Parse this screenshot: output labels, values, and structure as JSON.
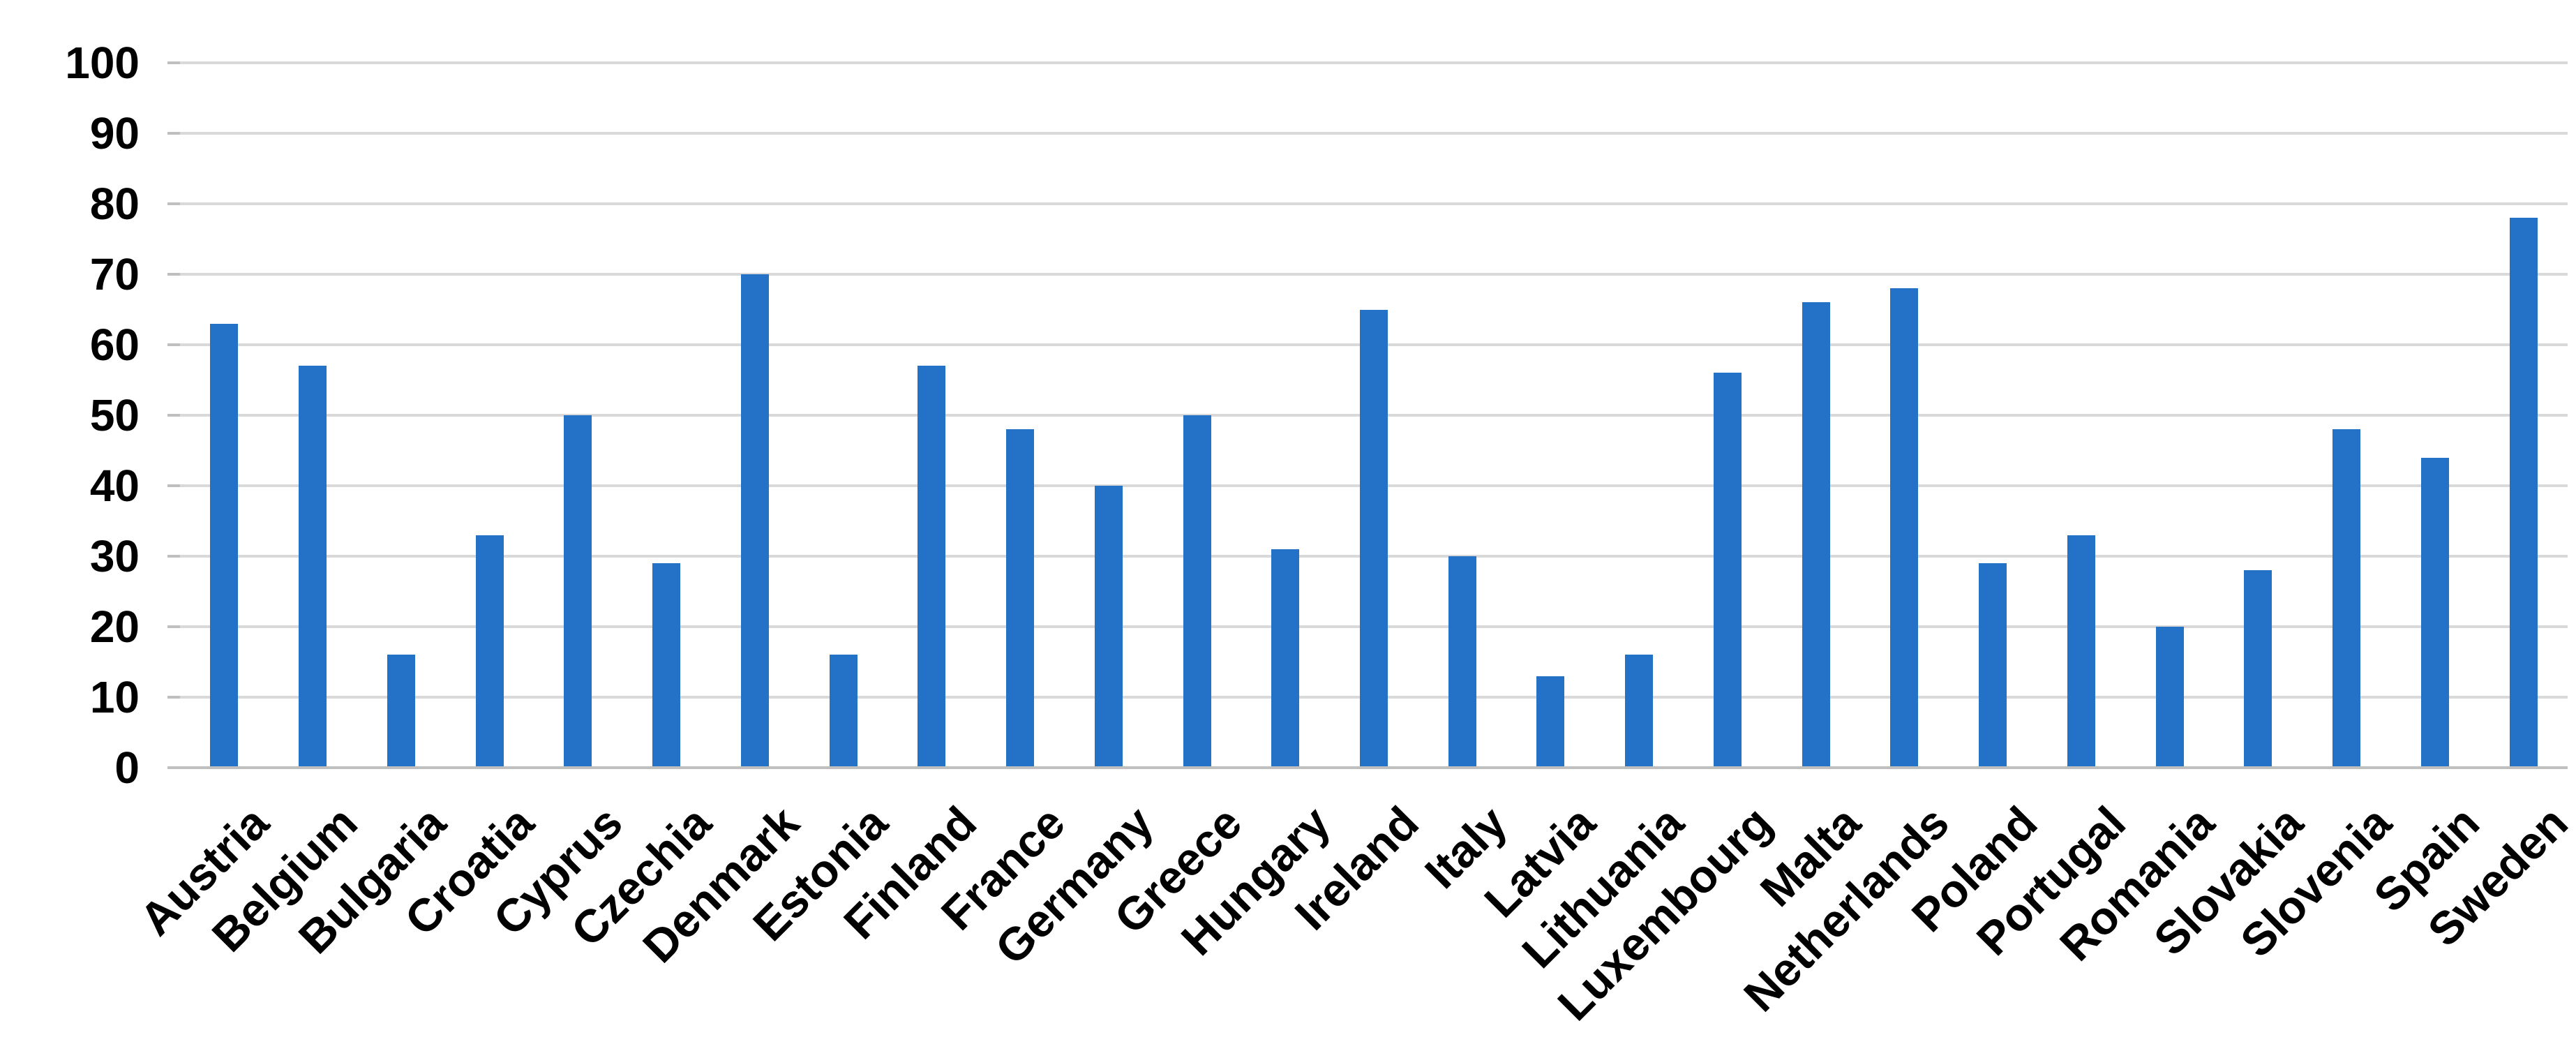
{
  "chart_data": {
    "type": "bar",
    "title": "",
    "xlabel": "",
    "ylabel": "",
    "categories": [
      "Austria",
      "Belgium",
      "Bulgaria",
      "Croatia",
      "Cyprus",
      "Czechia",
      "Denmark",
      "Estonia",
      "Finland",
      "France",
      "Germany",
      "Greece",
      "Hungary",
      "Ireland",
      "Italy",
      "Latvia",
      "Lithuania",
      "Luxembourg",
      "Malta",
      "Netherlands",
      "Poland",
      "Portugal",
      "Romania",
      "Slovakia",
      "Slovenia",
      "Spain",
      "Sweden"
    ],
    "values": [
      63,
      57,
      16,
      33,
      50,
      29,
      70,
      16,
      57,
      48,
      40,
      50,
      31,
      65,
      30,
      13,
      16,
      56,
      66,
      68,
      29,
      33,
      20,
      28,
      48,
      44,
      78
    ],
    "ylim": [
      0,
      100
    ],
    "yticks": [
      0,
      10,
      20,
      30,
      40,
      50,
      60,
      70,
      80,
      90,
      100
    ],
    "ytick_labels": [
      "0",
      "10",
      "20",
      "30",
      "40",
      "50",
      "60",
      "70",
      "80",
      "90",
      "100"
    ],
    "grid": true,
    "legend": false,
    "x_label_rotation_deg": 45,
    "colors": {
      "bar": "#2372C8",
      "gridline": "#D9D9D9",
      "axis_line": "#BFBFBF",
      "tick_mark": "#BFBFBF",
      "label_text": "#000000",
      "background": "#FFFFFF"
    }
  }
}
